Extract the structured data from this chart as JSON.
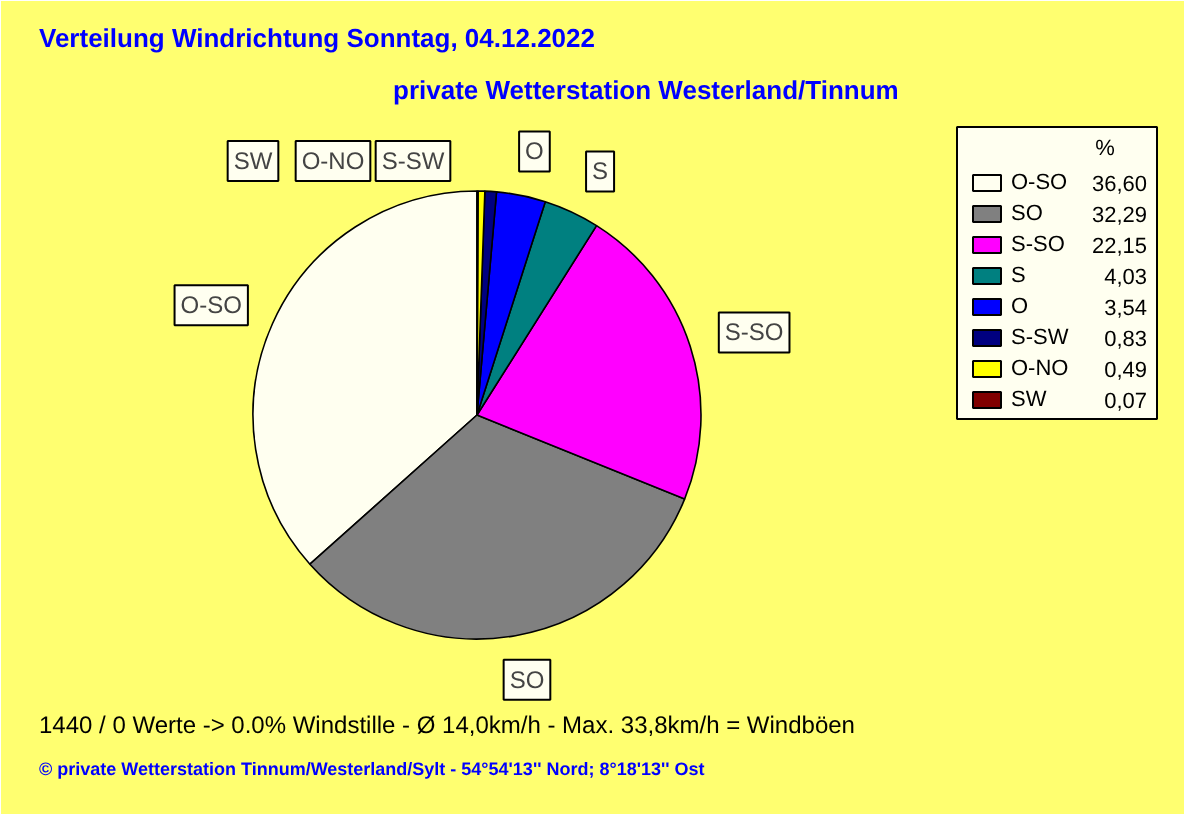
{
  "chart_data": {
    "type": "pie",
    "title": "Verteilung Windrichtung   Sonntag, 04.12.2022",
    "subtitle": "private Wetterstation Westerland/Tinnum",
    "categories": [
      "O-SO",
      "SO",
      "S-SO",
      "S",
      "O",
      "S-SW",
      "O-NO",
      "SW"
    ],
    "values": [
      36.6,
      32.29,
      22.15,
      4.03,
      3.54,
      0.83,
      0.49,
      0.07
    ],
    "value_labels": [
      "36,60",
      "32,29",
      "22,15",
      "4,03",
      "3,54",
      "0,83",
      "0,49",
      "0,07"
    ],
    "colors": [
      "#fffff0",
      "#808080",
      "#ff00ff",
      "#008080",
      "#0000ff",
      "#000080",
      "#ffff00",
      "#800000"
    ],
    "legend": "right",
    "legend_title": "%",
    "annotations": [
      "1440 / 0 Werte  -> 0.0% Windstille    -    Ø 14,0km/h  -  Max. 33,8km/h = Windböen",
      "© private Wetterstation Tinnum/Westerland/Sylt   -   54°54'13'' Nord; 8°18'13'' Ost"
    ]
  }
}
